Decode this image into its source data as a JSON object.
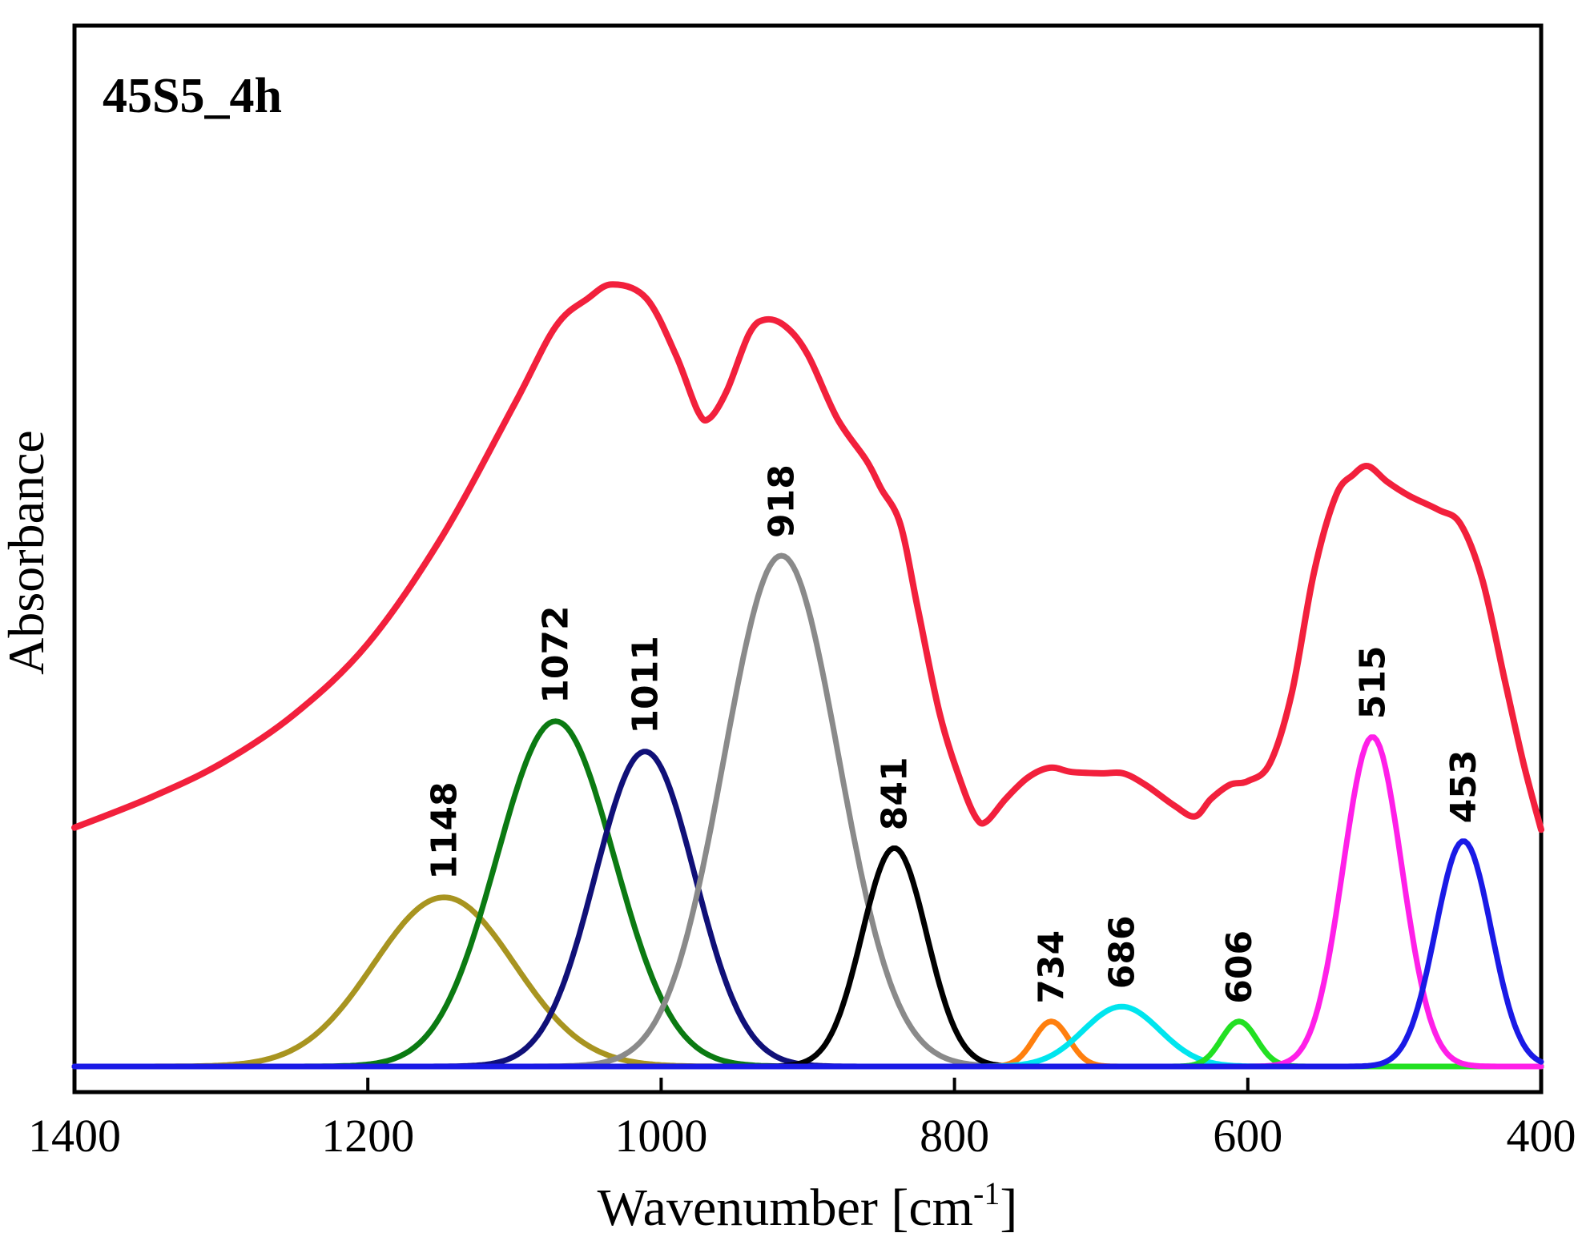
{
  "chart_data": {
    "type": "line",
    "title": "45S5_4h",
    "xlabel": "Wavenumber [cm",
    "xlabel_sup": "-1",
    "xlabel_end": "]",
    "ylabel": "Absorbance",
    "xlim": [
      1400,
      400
    ],
    "ylim": [
      0,
      1.3
    ],
    "grid": false,
    "x_ticks": [
      {
        "value": 1400,
        "label": "1400"
      },
      {
        "value": 1200,
        "label": "1200"
      },
      {
        "value": 1000,
        "label": "1000"
      },
      {
        "value": 800,
        "label": "800"
      },
      {
        "value": 600,
        "label": "600"
      },
      {
        "value": 400,
        "label": "400"
      }
    ],
    "measured": {
      "name": "measured spectrum",
      "color": "#f2203c",
      "points": [
        [
          1400,
          0.339
        ],
        [
          1350,
          0.38
        ],
        [
          1300,
          0.43
        ],
        [
          1250,
          0.5
        ],
        [
          1200,
          0.6
        ],
        [
          1150,
          0.75
        ],
        [
          1100,
          0.94
        ],
        [
          1072,
          1.05
        ],
        [
          1050,
          1.09
        ],
        [
          1033,
          1.11
        ],
        [
          1010,
          1.09
        ],
        [
          990,
          1.01
        ],
        [
          975,
          0.93
        ],
        [
          967,
          0.92
        ],
        [
          955,
          0.96
        ],
        [
          940,
          1.04
        ],
        [
          929,
          1.06
        ],
        [
          915,
          1.05
        ],
        [
          900,
          1.01
        ],
        [
          880,
          0.92
        ],
        [
          860,
          0.86
        ],
        [
          850,
          0.82
        ],
        [
          837,
          0.77
        ],
        [
          825,
          0.65
        ],
        [
          810,
          0.5
        ],
        [
          795,
          0.4
        ],
        [
          785,
          0.352
        ],
        [
          778,
          0.348
        ],
        [
          765,
          0.38
        ],
        [
          750,
          0.41
        ],
        [
          735,
          0.424
        ],
        [
          720,
          0.418
        ],
        [
          700,
          0.416
        ],
        [
          685,
          0.416
        ],
        [
          670,
          0.4
        ],
        [
          650,
          0.37
        ],
        [
          636,
          0.355
        ],
        [
          625,
          0.38
        ],
        [
          612,
          0.4
        ],
        [
          600,
          0.405
        ],
        [
          585,
          0.43
        ],
        [
          570,
          0.53
        ],
        [
          555,
          0.7
        ],
        [
          540,
          0.81
        ],
        [
          528,
          0.84
        ],
        [
          518,
          0.852
        ],
        [
          505,
          0.83
        ],
        [
          490,
          0.81
        ],
        [
          470,
          0.79
        ],
        [
          455,
          0.77
        ],
        [
          440,
          0.69
        ],
        [
          425,
          0.55
        ],
        [
          412,
          0.43
        ],
        [
          400,
          0.336
        ]
      ]
    },
    "series": [
      {
        "name": "1148",
        "label": "1148",
        "center": 1148,
        "amplitude": 0.24,
        "sigma": 48,
        "color": "#a89420"
      },
      {
        "name": "1072",
        "label": "1072",
        "center": 1072,
        "amplitude": 0.49,
        "sigma": 40,
        "color": "#0b7a12"
      },
      {
        "name": "1011",
        "label": "1011",
        "center": 1011,
        "amplitude": 0.447,
        "sigma": 34,
        "color": "#101078"
      },
      {
        "name": "918",
        "label": "918",
        "center": 918,
        "amplitude": 0.725,
        "sigma": 39,
        "color": "#8a8a8a"
      },
      {
        "name": "841",
        "label": "841",
        "center": 841,
        "amplitude": 0.31,
        "sigma": 22,
        "color": "#000000"
      },
      {
        "name": "734",
        "label": "734",
        "center": 734,
        "amplitude": 0.064,
        "sigma": 12,
        "color": "#ff7f0e"
      },
      {
        "name": "686",
        "label": "686",
        "center": 686,
        "amplitude": 0.085,
        "sigma": 26,
        "color": "#00e5ee"
      },
      {
        "name": "606",
        "label": "606",
        "center": 606,
        "amplitude": 0.064,
        "sigma": 12,
        "color": "#22e022"
      },
      {
        "name": "515",
        "label": "515",
        "center": 515,
        "amplitude": 0.468,
        "sigma": 20,
        "color": "#ff1fe8"
      },
      {
        "name": "453",
        "label": "453",
        "center": 453,
        "amplitude": 0.32,
        "sigma": 19,
        "color": "#1a1ae6"
      }
    ]
  }
}
